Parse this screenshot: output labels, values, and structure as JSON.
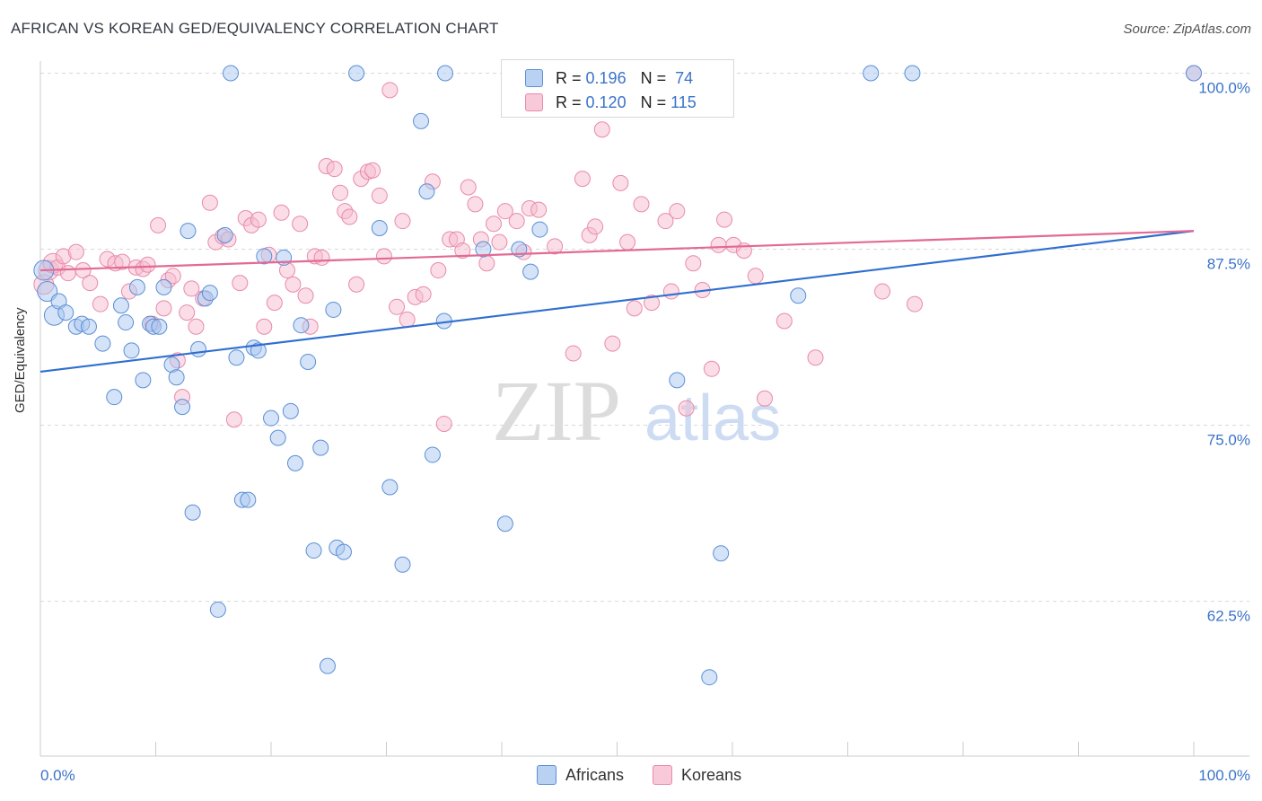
{
  "header": {
    "title": "AFRICAN VS KOREAN GED/EQUIVALENCY CORRELATION CHART",
    "source": "Source: ZipAtlas.com"
  },
  "legend": {
    "africans": {
      "r_label": "R =",
      "r_value": "0.196",
      "n_label": "N =",
      "n_value": "74"
    },
    "koreans": {
      "r_label": "R =",
      "r_value": "0.120",
      "n_label": "N =",
      "n_value": "115"
    }
  },
  "colors": {
    "africans_fill": "#a9c8f0",
    "africans_stroke": "#5b8fd6",
    "africans_line": "#2f6fcf",
    "koreans_fill": "#f6bcd0",
    "koreans_stroke": "#e98aab",
    "koreans_line": "#e26a94",
    "tick_label": "#3a73c9"
  },
  "watermark": {
    "zip": "ZIP",
    "atlas": "atlas"
  },
  "chart_data": {
    "type": "scatter",
    "title": "AFRICAN VS KOREAN GED/EQUIVALENCY CORRELATION CHART",
    "ylabel": "GED/Equivalency",
    "xlabel": "",
    "xlim": [
      0,
      100
    ],
    "ylim": [
      51.5,
      101.5
    ],
    "x_tick_labels": [
      "0.0%",
      "100.0%"
    ],
    "y_ticks": [
      {
        "value": 100,
        "label": "100.0%"
      },
      {
        "value": 87.5,
        "label": "87.5%"
      },
      {
        "value": 75,
        "label": "75.0%"
      },
      {
        "value": 62.5,
        "label": "62.5%"
      }
    ],
    "grid": "horizontal dashed",
    "legend_placement": "bottom-center",
    "series": [
      {
        "name": "Africans",
        "trend": {
          "x": [
            0,
            100
          ],
          "y": [
            78.8,
            88.8
          ]
        },
        "points": [
          [
            0.3,
            86.0
          ],
          [
            0.6,
            84.5
          ],
          [
            1.2,
            82.8
          ],
          [
            1.6,
            83.8
          ],
          [
            2.2,
            83.0
          ],
          [
            3.1,
            82.0
          ],
          [
            3.6,
            82.2
          ],
          [
            4.2,
            82.0
          ],
          [
            5.4,
            80.8
          ],
          [
            6.4,
            77.0
          ],
          [
            7.0,
            83.5
          ],
          [
            7.4,
            82.3
          ],
          [
            7.9,
            80.3
          ],
          [
            8.4,
            84.8
          ],
          [
            8.9,
            78.2
          ],
          [
            9.5,
            82.2
          ],
          [
            9.8,
            82.0
          ],
          [
            10.3,
            82.0
          ],
          [
            10.7,
            84.8
          ],
          [
            11.4,
            79.3
          ],
          [
            11.8,
            78.4
          ],
          [
            12.3,
            76.3
          ],
          [
            12.8,
            88.8
          ],
          [
            13.2,
            68.8
          ],
          [
            13.7,
            80.4
          ],
          [
            14.3,
            84.0
          ],
          [
            14.7,
            84.4
          ],
          [
            15.4,
            61.9
          ],
          [
            16.0,
            88.5
          ],
          [
            16.5,
            100.0
          ],
          [
            17.0,
            79.8
          ],
          [
            17.5,
            69.7
          ],
          [
            18.0,
            69.7
          ],
          [
            18.5,
            80.5
          ],
          [
            18.9,
            80.3
          ],
          [
            19.4,
            87.0
          ],
          [
            20.0,
            75.5
          ],
          [
            20.6,
            74.1
          ],
          [
            21.1,
            86.9
          ],
          [
            21.7,
            76.0
          ],
          [
            22.1,
            72.3
          ],
          [
            22.6,
            82.1
          ],
          [
            23.2,
            79.5
          ],
          [
            23.7,
            66.1
          ],
          [
            24.3,
            73.4
          ],
          [
            24.9,
            57.9
          ],
          [
            25.4,
            83.2
          ],
          [
            25.7,
            66.3
          ],
          [
            26.3,
            66.0
          ],
          [
            27.4,
            100.0
          ],
          [
            29.4,
            89.0
          ],
          [
            30.3,
            70.6
          ],
          [
            31.4,
            65.1
          ],
          [
            33.0,
            96.6
          ],
          [
            33.5,
            91.6
          ],
          [
            34.0,
            72.9
          ],
          [
            35.1,
            100.0
          ],
          [
            35.0,
            82.4
          ],
          [
            38.4,
            87.5
          ],
          [
            40.3,
            68.0
          ],
          [
            41.5,
            87.5
          ],
          [
            42.5,
            85.9
          ],
          [
            43.3,
            88.9
          ],
          [
            52.3,
            100.0
          ],
          [
            55.2,
            78.2
          ],
          [
            58.0,
            57.1
          ],
          [
            59.0,
            65.9
          ],
          [
            65.7,
            84.2
          ],
          [
            72.0,
            100.0
          ],
          [
            75.6,
            100.0
          ],
          [
            100.0,
            100.0
          ]
        ]
      },
      {
        "name": "Koreans",
        "trend": {
          "x": [
            0,
            100
          ],
          "y": [
            86.0,
            88.8
          ]
        },
        "points": [
          [
            0.3,
            85.0
          ],
          [
            0.7,
            86.0
          ],
          [
            1.1,
            86.5
          ],
          [
            1.5,
            86.2
          ],
          [
            2.0,
            87.0
          ],
          [
            2.4,
            85.8
          ],
          [
            3.1,
            87.3
          ],
          [
            3.7,
            86.0
          ],
          [
            4.3,
            85.1
          ],
          [
            5.2,
            83.6
          ],
          [
            5.8,
            86.8
          ],
          [
            6.5,
            86.5
          ],
          [
            7.1,
            86.6
          ],
          [
            7.7,
            84.5
          ],
          [
            8.3,
            86.2
          ],
          [
            8.9,
            86.1
          ],
          [
            9.3,
            86.4
          ],
          [
            9.7,
            82.2
          ],
          [
            10.2,
            89.2
          ],
          [
            10.7,
            83.3
          ],
          [
            11.1,
            85.3
          ],
          [
            11.5,
            85.6
          ],
          [
            11.9,
            79.6
          ],
          [
            12.3,
            77.0
          ],
          [
            12.7,
            83.0
          ],
          [
            13.1,
            84.7
          ],
          [
            13.5,
            82.0
          ],
          [
            14.1,
            84.0
          ],
          [
            14.7,
            90.8
          ],
          [
            15.2,
            88.0
          ],
          [
            15.8,
            88.4
          ],
          [
            16.3,
            88.2
          ],
          [
            16.8,
            75.4
          ],
          [
            17.3,
            85.1
          ],
          [
            17.8,
            89.7
          ],
          [
            18.3,
            89.2
          ],
          [
            18.9,
            89.6
          ],
          [
            19.4,
            82.0
          ],
          [
            19.8,
            87.1
          ],
          [
            20.3,
            83.7
          ],
          [
            20.9,
            90.1
          ],
          [
            21.4,
            86.0
          ],
          [
            21.9,
            85.0
          ],
          [
            22.5,
            89.3
          ],
          [
            23.0,
            84.2
          ],
          [
            23.4,
            82.0
          ],
          [
            23.8,
            87.0
          ],
          [
            24.4,
            86.9
          ],
          [
            24.8,
            93.4
          ],
          [
            25.5,
            93.2
          ],
          [
            26.0,
            91.5
          ],
          [
            26.4,
            90.2
          ],
          [
            26.8,
            89.8
          ],
          [
            27.4,
            85.0
          ],
          [
            27.8,
            92.5
          ],
          [
            28.4,
            93.0
          ],
          [
            28.8,
            93.1
          ],
          [
            29.4,
            91.3
          ],
          [
            29.8,
            87.0
          ],
          [
            30.3,
            98.8
          ],
          [
            30.9,
            83.4
          ],
          [
            31.4,
            89.5
          ],
          [
            31.8,
            82.5
          ],
          [
            32.5,
            84.1
          ],
          [
            33.2,
            84.3
          ],
          [
            34.0,
            92.3
          ],
          [
            34.5,
            86.0
          ],
          [
            35.0,
            75.1
          ],
          [
            35.5,
            88.2
          ],
          [
            36.1,
            88.2
          ],
          [
            36.6,
            87.4
          ],
          [
            37.1,
            91.9
          ],
          [
            37.7,
            90.7
          ],
          [
            38.2,
            88.2
          ],
          [
            38.7,
            86.5
          ],
          [
            39.3,
            89.3
          ],
          [
            39.8,
            88.0
          ],
          [
            40.3,
            90.2
          ],
          [
            40.7,
            100.0
          ],
          [
            41.3,
            89.5
          ],
          [
            41.9,
            87.3
          ],
          [
            42.4,
            90.4
          ],
          [
            43.2,
            90.3
          ],
          [
            44.6,
            87.7
          ],
          [
            46.2,
            80.1
          ],
          [
            47.0,
            92.5
          ],
          [
            47.6,
            88.5
          ],
          [
            48.1,
            89.1
          ],
          [
            48.7,
            96.0
          ],
          [
            49.6,
            80.8
          ],
          [
            50.3,
            92.2
          ],
          [
            50.9,
            88.0
          ],
          [
            51.5,
            83.3
          ],
          [
            52.1,
            90.7
          ],
          [
            53.0,
            83.7
          ],
          [
            54.2,
            89.5
          ],
          [
            54.7,
            84.5
          ],
          [
            55.2,
            90.2
          ],
          [
            56.0,
            76.2
          ],
          [
            56.6,
            86.5
          ],
          [
            57.4,
            84.6
          ],
          [
            58.2,
            79.0
          ],
          [
            58.8,
            87.8
          ],
          [
            59.3,
            89.6
          ],
          [
            60.1,
            87.8
          ],
          [
            61.0,
            87.4
          ],
          [
            62.0,
            85.6
          ],
          [
            62.8,
            76.9
          ],
          [
            64.5,
            82.4
          ],
          [
            67.2,
            79.8
          ],
          [
            73.0,
            84.5
          ],
          [
            75.8,
            83.6
          ],
          [
            100.0,
            100.0
          ]
        ]
      }
    ]
  },
  "bottom_legend": {
    "africans": "Africans",
    "koreans": "Koreans"
  }
}
